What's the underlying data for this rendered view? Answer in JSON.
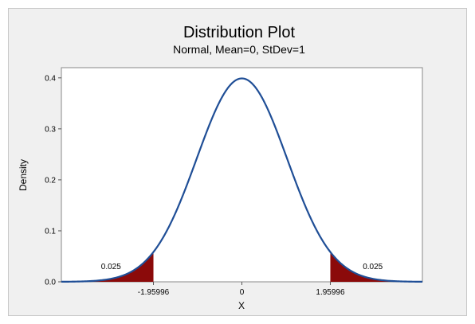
{
  "chart_data": {
    "type": "area",
    "title": "Distribution Plot",
    "subtitle": "Normal, Mean=0, StDev=1",
    "xlabel": "X",
    "ylabel": "Density",
    "xlim": [
      -4.0,
      4.0
    ],
    "ylim": [
      0.0,
      0.42
    ],
    "yticks": [
      0.0,
      0.1,
      0.2,
      0.3,
      0.4
    ],
    "ytick_labels": [
      "0.0",
      "0.1",
      "0.2",
      "0.3",
      "0.4"
    ],
    "xticks": [
      -1.95996,
      0,
      1.95996
    ],
    "xtick_labels": [
      "-1.95996",
      "0",
      "1.95996"
    ],
    "distribution": {
      "name": "Normal",
      "mean": 0,
      "stdev": 1
    },
    "shaded_regions": [
      {
        "from": -4.0,
        "to": -1.95996,
        "area_label": "0.025",
        "label_x": -2.9,
        "label_y": 0.025
      },
      {
        "from": 1.95996,
        "to": 4.0,
        "area_label": "0.025",
        "label_x": 2.9,
        "label_y": 0.025
      }
    ],
    "colors": {
      "curve": "#1f4e96",
      "shade": "#8b0a0a",
      "plot_bg": "#ffffff",
      "frame_bg": "#f0f0f0"
    }
  }
}
